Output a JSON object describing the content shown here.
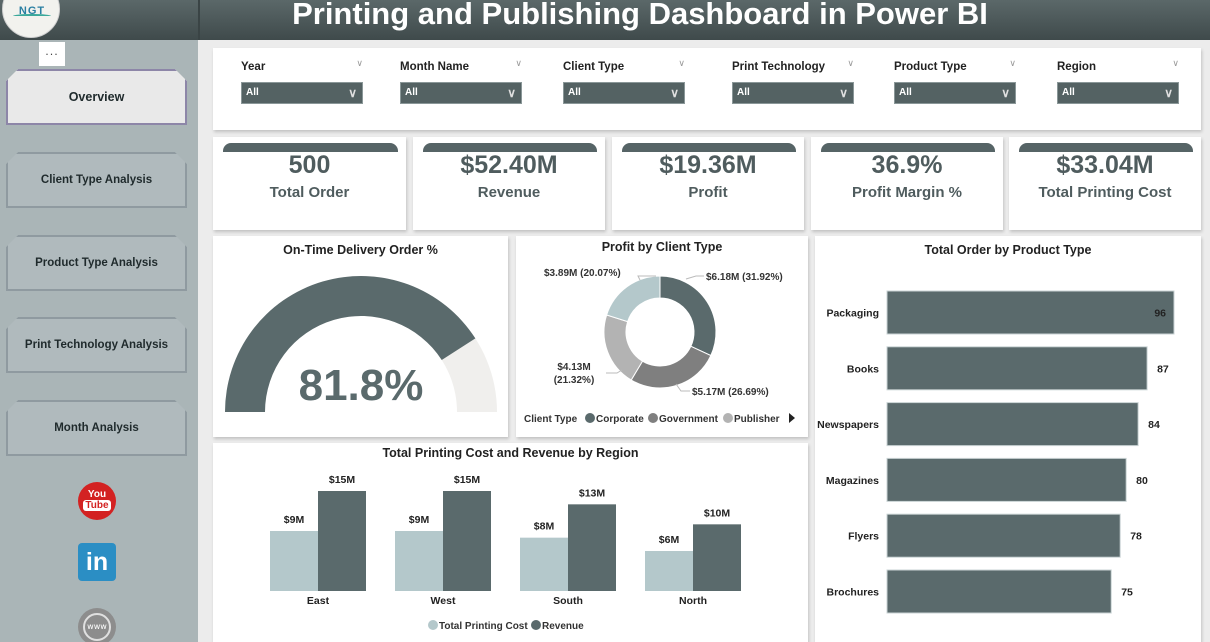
{
  "header": {
    "title": "Printing and Publishing Dashboard in Power BI",
    "logo_text": "NGT"
  },
  "sidebar": {
    "more_label": "...",
    "nav": [
      {
        "label": "Overview",
        "active": true
      },
      {
        "label": "Client Type Analysis",
        "active": false
      },
      {
        "label": "Product Type Analysis",
        "active": false
      },
      {
        "label": "Print Technology Analysis",
        "active": false
      },
      {
        "label": "Month Analysis",
        "active": false
      }
    ],
    "social": [
      {
        "icon": "youtube-icon",
        "text_top": "You",
        "text_bottom": "Tube"
      },
      {
        "icon": "linkedin-icon",
        "text": "in"
      },
      {
        "icon": "globe-icon",
        "text": "www"
      }
    ]
  },
  "filters": [
    {
      "label": "Year",
      "value": "All"
    },
    {
      "label": "Month Name",
      "value": "All"
    },
    {
      "label": "Client Type",
      "value": "All"
    },
    {
      "label": "Print Technology",
      "value": "All"
    },
    {
      "label": "Product Type",
      "value": "All"
    },
    {
      "label": "Region",
      "value": "All"
    }
  ],
  "kpis": [
    {
      "value": "500",
      "label": "Total Order"
    },
    {
      "value": "$52.40M",
      "label": "Revenue"
    },
    {
      "value": "$19.36M",
      "label": "Profit"
    },
    {
      "value": "36.9%",
      "label": "Profit Margin %"
    },
    {
      "value": "$33.04M",
      "label": "Total Printing Cost"
    }
  ],
  "colors": {
    "dark": "#5a6a6c",
    "light_teal": "#b4c8cb",
    "mid_gray": "#7f7f7f",
    "light_gray": "#b3b3b3",
    "gauge_track": "#f0efed"
  },
  "chart_data": [
    {
      "type": "gauge",
      "title": "On-Time Delivery Order %",
      "value": 81.8,
      "max": 100,
      "display": "81.8%"
    },
    {
      "type": "pie",
      "title": "Profit by Client Type",
      "legend_title": "Client Type",
      "legend": [
        "Corporate",
        "Government",
        "Publisher"
      ],
      "legend_placement": "bottom",
      "slices": [
        {
          "name": "Corporate",
          "value": 6.18,
          "pct": 31.92,
          "label": "$6.18M (31.92%)",
          "color": "#5a6a6c"
        },
        {
          "name": "Government",
          "value": 5.17,
          "pct": 26.69,
          "label": "$5.17M (26.69%)",
          "color": "#7f7f7f"
        },
        {
          "name": "Publisher",
          "value": 4.13,
          "pct": 21.32,
          "label_line1": "$4.13M",
          "label_line2": "(21.32%)",
          "color": "#b3b3b3"
        },
        {
          "name": "",
          "value": 3.89,
          "pct": 20.07,
          "label": "$3.89M (20.07%)",
          "color": "#b4c8cb"
        }
      ]
    },
    {
      "type": "bar",
      "orientation": "horizontal",
      "title": "Total Order by Product Type",
      "categories": [
        "Packaging",
        "Books",
        "Newspapers",
        "Magazines",
        "Flyers",
        "Brochures"
      ],
      "values": [
        96,
        87,
        84,
        80,
        78,
        75
      ],
      "xlim": [
        0,
        96
      ]
    },
    {
      "type": "bar",
      "title": "Total Printing Cost and Revenue by Region",
      "categories": [
        "East",
        "West",
        "South",
        "North"
      ],
      "series": [
        {
          "name": "Total Printing Cost",
          "values": [
            9,
            9,
            8,
            6
          ],
          "labels": [
            "$9M",
            "$9M",
            "$8M",
            "$6M"
          ],
          "color": "#b4c8cb"
        },
        {
          "name": "Revenue",
          "values": [
            15,
            15,
            13,
            10
          ],
          "labels": [
            "$15M",
            "$15M",
            "$13M",
            "$10M"
          ],
          "color": "#5a6a6c"
        }
      ],
      "ylabel": "",
      "xlabel": "",
      "legend_placement": "bottom",
      "ylim": [
        0,
        15
      ]
    }
  ]
}
